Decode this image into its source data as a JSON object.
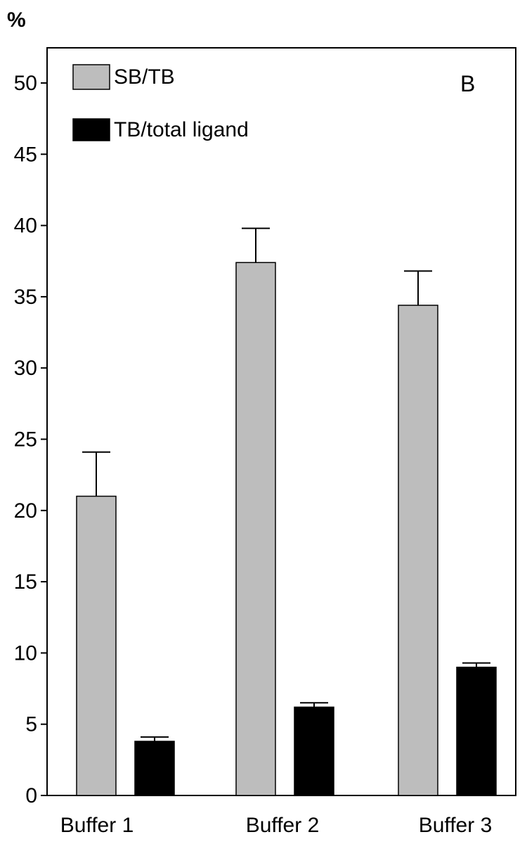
{
  "chart_data": {
    "type": "bar",
    "categories": [
      "Buffer 1",
      "Buffer 2",
      "Buffer 3"
    ],
    "series": [
      {
        "name": "SB/TB",
        "values": [
          21.0,
          37.4,
          34.4
        ],
        "errors": [
          3.1,
          2.4,
          2.4
        ],
        "color": "#bdbdbd"
      },
      {
        "name": "TB/total ligand",
        "values": [
          3.8,
          6.2,
          9.0
        ],
        "errors": [
          0.3,
          0.3,
          0.3
        ],
        "color": "#000000"
      }
    ],
    "ylabel": "%",
    "ylim": [
      0,
      52
    ],
    "yticks": [
      0,
      5,
      10,
      15,
      20,
      25,
      30,
      35,
      40,
      45,
      50
    ],
    "panel_label": "B",
    "legend": "top-left",
    "grid": false
  }
}
